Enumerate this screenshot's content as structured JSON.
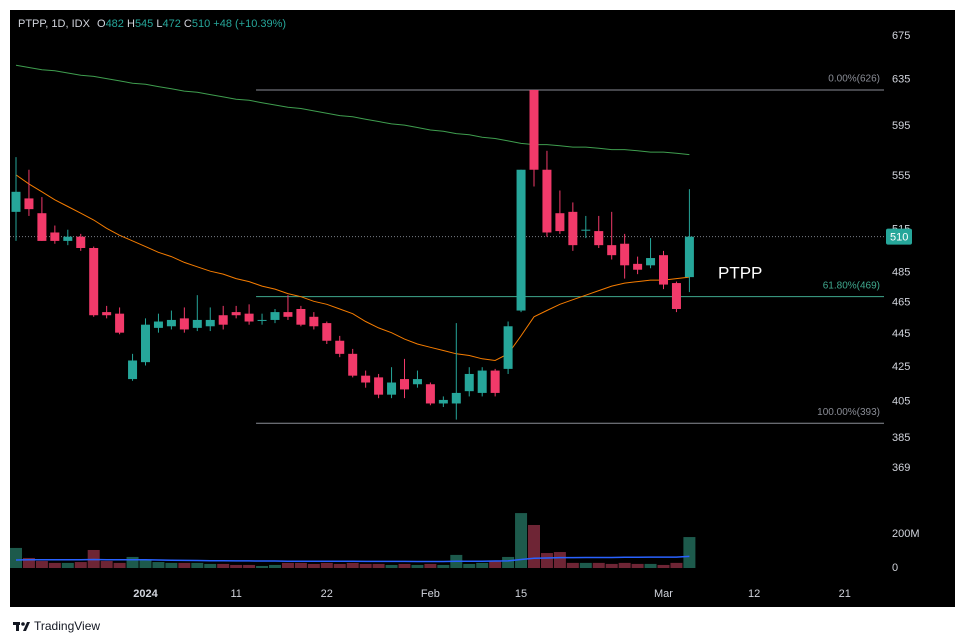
{
  "chart_data": {
    "type": "candlestick",
    "title": "PTPP, 1D, IDX",
    "ohlc_labels": [
      "O",
      "H",
      "L",
      "C"
    ],
    "change_label": "+48 (+10.39%)",
    "annotation": "PTPP",
    "footer_brand": "TradingView",
    "log_scale": true,
    "up_color": "#26a69a",
    "down_color": "#f23a6a",
    "ylim": [
      358,
      700
    ],
    "yticks": [
      675,
      635,
      595,
      555,
      515,
      485,
      465,
      445,
      425,
      405,
      385,
      369
    ],
    "categories": [
      null,
      null,
      null,
      null,
      null,
      null,
      null,
      null,
      null,
      null,
      "2024",
      null,
      null,
      null,
      null,
      null,
      null,
      "11",
      null,
      null,
      null,
      null,
      null,
      null,
      "22",
      null,
      null,
      null,
      null,
      null,
      null,
      null,
      "Feb",
      null,
      null,
      null,
      null,
      null,
      null,
      "15",
      null,
      null,
      null,
      null,
      null,
      null,
      null,
      null,
      null,
      null,
      "Mar",
      null,
      null,
      null,
      null,
      null,
      null,
      "12",
      null,
      null,
      null,
      null,
      null,
      null,
      "21"
    ],
    "open": [
      528,
      538,
      527,
      513,
      507,
      510,
      502,
      459,
      458,
      418,
      428,
      449,
      450,
      455,
      449,
      450,
      457,
      459,
      458,
      454,
      454,
      459,
      461,
      456,
      452,
      441,
      433,
      420,
      419,
      409,
      418,
      415,
      415,
      404,
      404,
      411,
      410,
      423,
      424,
      460,
      626,
      560,
      527,
      528,
      515,
      514,
      504,
      505,
      491,
      490,
      497,
      478,
      482,
      null,
      null,
      null,
      null,
      null,
      null,
      null,
      null,
      null,
      null,
      null,
      null
    ],
    "high": [
      570,
      560,
      539,
      518,
      515,
      512,
      503,
      463,
      462,
      433,
      455,
      458,
      460,
      462,
      470,
      462,
      463,
      463,
      464,
      458,
      461,
      470,
      463,
      459,
      453,
      444,
      436,
      423,
      421,
      425,
      430,
      423,
      416,
      408,
      452,
      425,
      425,
      424,
      453,
      560,
      626,
      575,
      544,
      535,
      525,
      525,
      528,
      512,
      496,
      509,
      500,
      479,
      545,
      null,
      null,
      null,
      null,
      null,
      null,
      null,
      null,
      null,
      null,
      null,
      null
    ],
    "low": [
      507,
      525,
      507,
      505,
      504,
      500,
      456,
      455,
      445,
      417,
      426,
      446,
      448,
      446,
      447,
      447,
      448,
      455,
      451,
      451,
      452,
      454,
      450,
      448,
      439,
      431,
      419,
      413,
      407,
      407,
      407,
      413,
      403,
      402,
      395,
      408,
      408,
      408,
      421,
      459,
      547,
      510,
      512,
      500,
      509,
      502,
      494,
      481,
      484,
      488,
      474,
      459,
      472,
      null,
      null,
      null,
      null,
      null,
      null,
      null,
      null,
      null,
      null,
      null,
      null
    ],
    "close": [
      543,
      530,
      507,
      507,
      510,
      502,
      457,
      457,
      446,
      429,
      451,
      453,
      454,
      448,
      454,
      454,
      451,
      457,
      453,
      454,
      459,
      456,
      451,
      450,
      441,
      433,
      420,
      416,
      409,
      416,
      412,
      418,
      404,
      406,
      410,
      421,
      423,
      410,
      450,
      560,
      560,
      513,
      514,
      504,
      515,
      504,
      497,
      490,
      487,
      495,
      477,
      461,
      510,
      null,
      null,
      null,
      null,
      null,
      null,
      null,
      null,
      null,
      null,
      null,
      null
    ],
    "moving_averages": [
      {
        "color": "#f57c00",
        "values": [
          556,
          549,
          543,
          537,
          532,
          527,
          522,
          516,
          511,
          507,
          503,
          499,
          496,
          492,
          489,
          486,
          484,
          481,
          479,
          476,
          474,
          471,
          469,
          466,
          464,
          461,
          458,
          453,
          449,
          446,
          442,
          439,
          437,
          435,
          433,
          432,
          430,
          429,
          433,
          444,
          456,
          460,
          464,
          467,
          470,
          473,
          476,
          478,
          479,
          480,
          480,
          481,
          482,
          null,
          null,
          null,
          null,
          null,
          null,
          null,
          null,
          null,
          null,
          null,
          null
        ]
      },
      {
        "color": "#3f9e4f",
        "values": [
          648,
          646,
          644,
          643,
          641,
          639,
          638,
          636,
          634,
          632,
          631,
          629,
          627,
          625,
          624,
          622,
          620,
          618,
          617,
          615,
          613,
          611,
          610,
          608,
          606,
          604,
          603,
          601,
          599,
          597,
          596,
          594,
          592,
          591,
          589,
          588,
          586,
          585,
          583,
          581,
          580,
          580,
          579,
          578,
          578,
          577,
          576,
          576,
          575,
          574,
          574,
          573,
          572,
          null,
          null,
          null,
          null,
          null,
          null,
          null,
          null,
          null,
          null,
          null,
          null
        ]
      }
    ],
    "fib_levels": [
      {
        "value": 626,
        "label": "0.00%(626)",
        "color": "#8a8d96"
      },
      {
        "value": 469,
        "label": "61.80%(469)",
        "color": "#3fa88e"
      },
      {
        "value": 393,
        "label": "100.00%(393)",
        "color": "#8a8d96"
      }
    ],
    "volume": {
      "up_color": "#1d5a4c",
      "down_color": "#6e2535",
      "ma_color": "#2962ff",
      "ylim": [
        0,
        400000000
      ],
      "yticks": [
        {
          "value": 200000000,
          "label": "200M"
        },
        0
      ],
      "values": [
        118000000,
        59000000,
        41000000,
        30000000,
        30000000,
        35000000,
        106000000,
        41000000,
        30000000,
        65000000,
        47000000,
        35000000,
        30000000,
        30000000,
        30000000,
        24000000,
        24000000,
        18000000,
        18000000,
        12000000,
        18000000,
        30000000,
        30000000,
        24000000,
        30000000,
        24000000,
        30000000,
        24000000,
        24000000,
        18000000,
        24000000,
        18000000,
        24000000,
        18000000,
        77000000,
        24000000,
        30000000,
        41000000,
        65000000,
        323000000,
        253000000,
        88000000,
        94000000,
        30000000,
        30000000,
        30000000,
        24000000,
        30000000,
        24000000,
        24000000,
        18000000,
        30000000,
        182000000,
        null,
        null,
        null,
        null,
        null,
        null,
        null,
        null,
        null,
        null,
        null,
        null
      ],
      "ma_values": [
        47000000,
        48000000,
        48000000,
        48000000,
        48000000,
        49000000,
        50000000,
        49000000,
        49000000,
        48000000,
        48000000,
        47000000,
        46000000,
        45000000,
        44000000,
        43000000,
        43000000,
        42000000,
        42000000,
        41000000,
        41000000,
        40000000,
        40000000,
        40000000,
        40000000,
        40000000,
        40000000,
        39000000,
        39000000,
        39000000,
        39000000,
        38000000,
        38000000,
        38000000,
        40000000,
        40000000,
        40000000,
        41000000,
        42000000,
        50000000,
        57000000,
        59000000,
        61000000,
        61000000,
        62000000,
        62000000,
        62000000,
        63000000,
        63000000,
        64000000,
        64000000,
        64000000,
        68000000,
        null,
        null,
        null,
        null,
        null,
        null,
        null,
        null,
        null,
        null,
        null,
        null
      ]
    }
  }
}
